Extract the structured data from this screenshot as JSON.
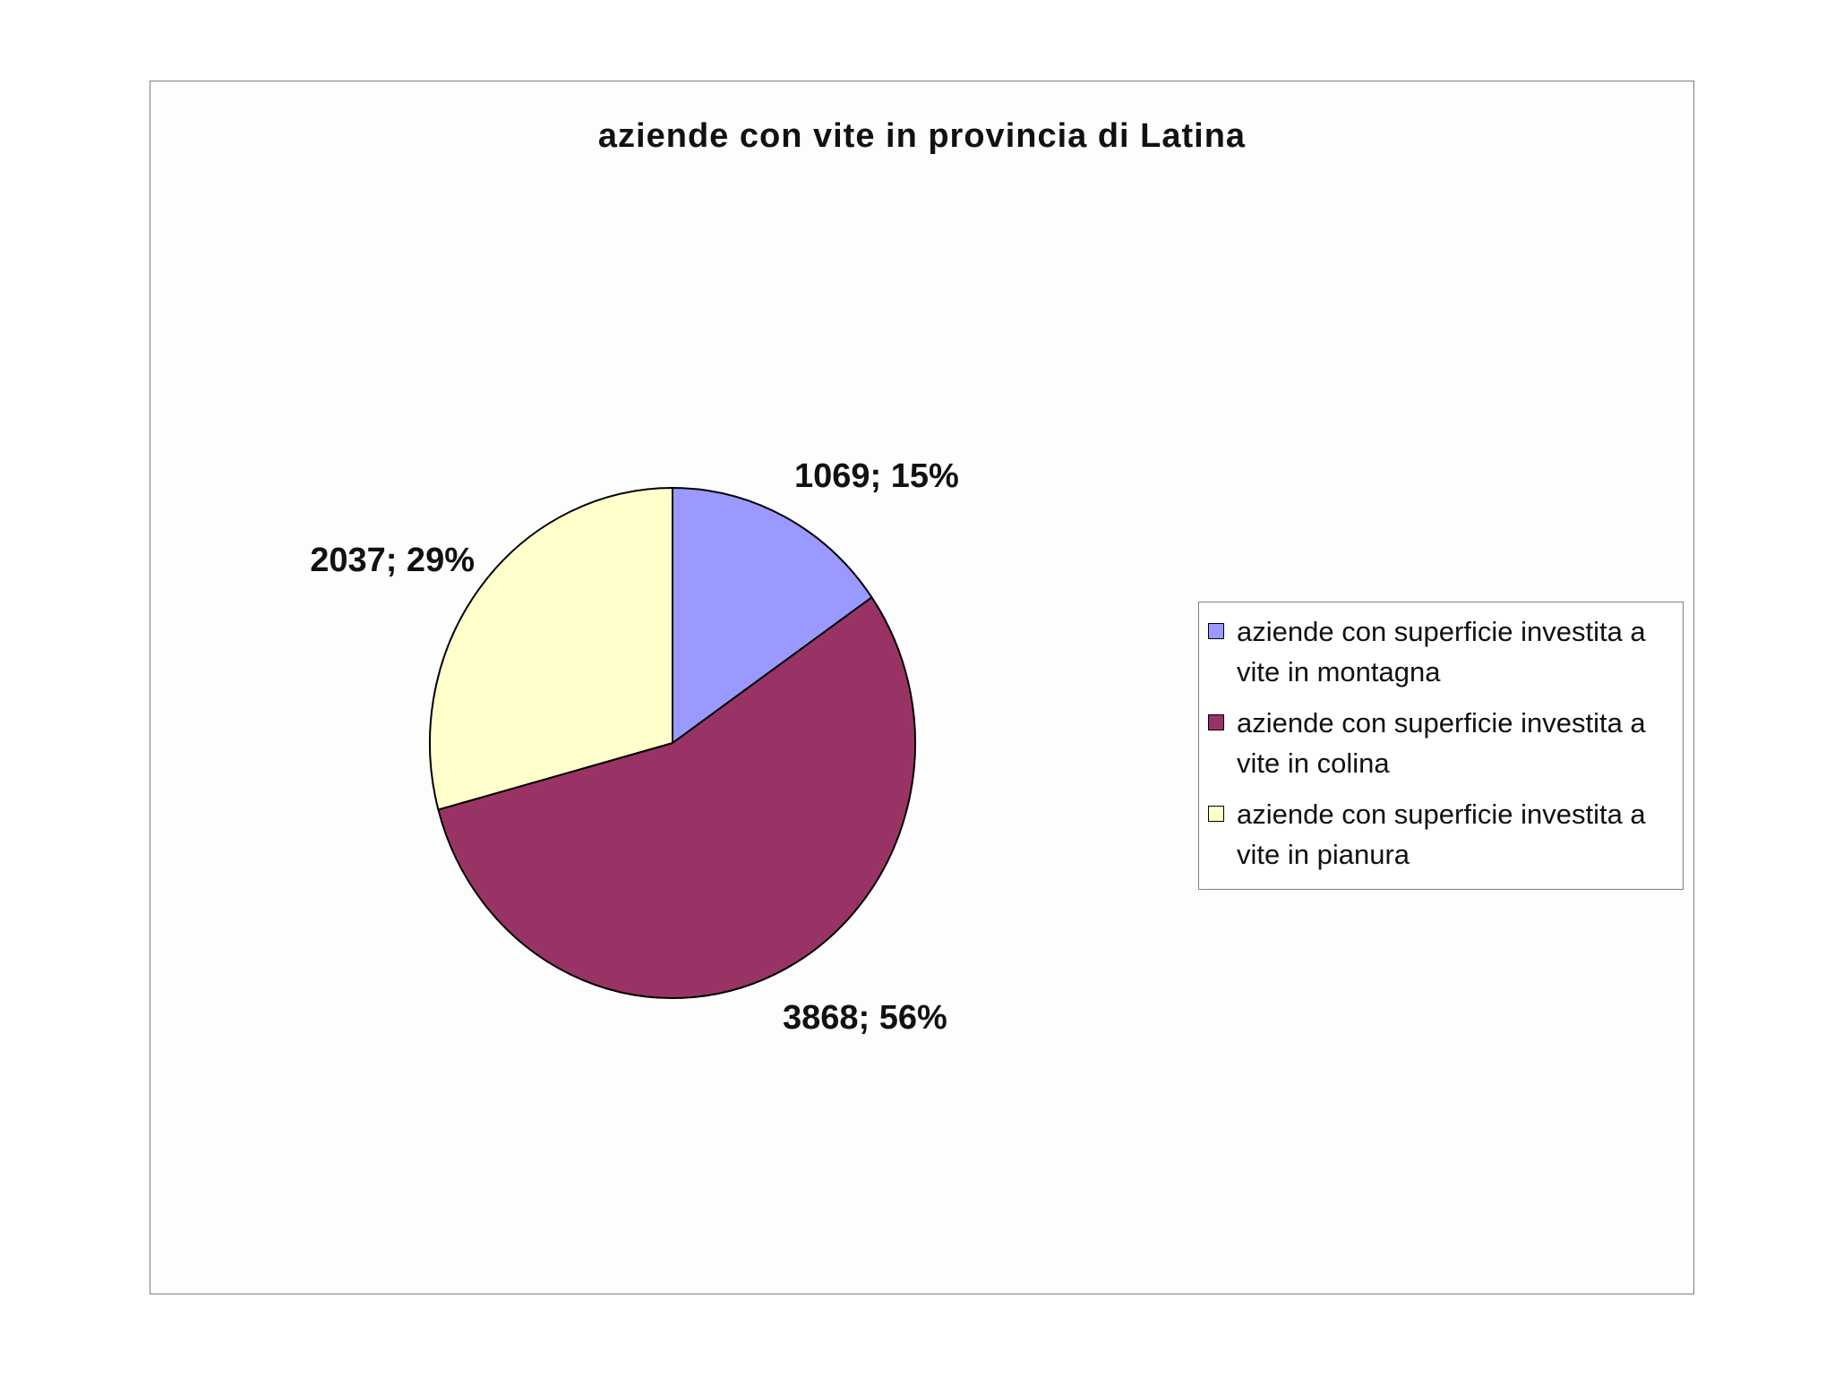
{
  "chart_data": {
    "type": "pie",
    "title": "aziende con vite in provincia di Latina",
    "series": [
      {
        "name": "aziende con superficie investita a vite in montagna",
        "value": 1069,
        "label": "1069; 15%",
        "color": "#9999ff"
      },
      {
        "name": "aziende con superficie investita a vite in colina",
        "value": 3868,
        "label": "3868; 56%",
        "color": "#993366"
      },
      {
        "name": "aziende con superficie investita a vite in pianura",
        "value": 2037,
        "label": "2037; 29%",
        "color": "#ffffcc"
      }
    ],
    "legend_position": "right"
  }
}
